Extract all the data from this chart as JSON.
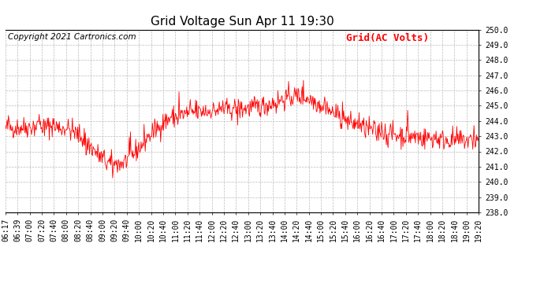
{
  "title": "Grid Voltage Sun Apr 11 19:30",
  "copyright": "Copyright 2021 Cartronics.com",
  "legend_label": "Grid(AC Volts)",
  "line_color": "red",
  "background_color": "#ffffff",
  "grid_color": "#bbbbbb",
  "ylim": [
    238.0,
    250.0
  ],
  "yticks": [
    238.0,
    239.0,
    240.0,
    241.0,
    242.0,
    243.0,
    244.0,
    245.0,
    246.0,
    247.0,
    248.0,
    249.0,
    250.0
  ],
  "xtick_labels": [
    "06:17",
    "06:39",
    "07:00",
    "07:20",
    "07:40",
    "08:00",
    "08:20",
    "08:40",
    "09:00",
    "09:20",
    "09:40",
    "10:00",
    "10:20",
    "10:40",
    "11:00",
    "11:20",
    "11:40",
    "12:00",
    "12:20",
    "12:40",
    "13:00",
    "13:20",
    "13:40",
    "14:00",
    "14:20",
    "14:40",
    "15:00",
    "15:20",
    "15:40",
    "16:00",
    "16:20",
    "16:40",
    "17:00",
    "17:20",
    "17:40",
    "18:00",
    "18:20",
    "18:40",
    "19:00",
    "19:20"
  ],
  "n_points": 800,
  "title_fontsize": 11,
  "tick_fontsize": 7,
  "legend_fontsize": 9,
  "copyright_fontsize": 7.5,
  "line_width": 0.6
}
